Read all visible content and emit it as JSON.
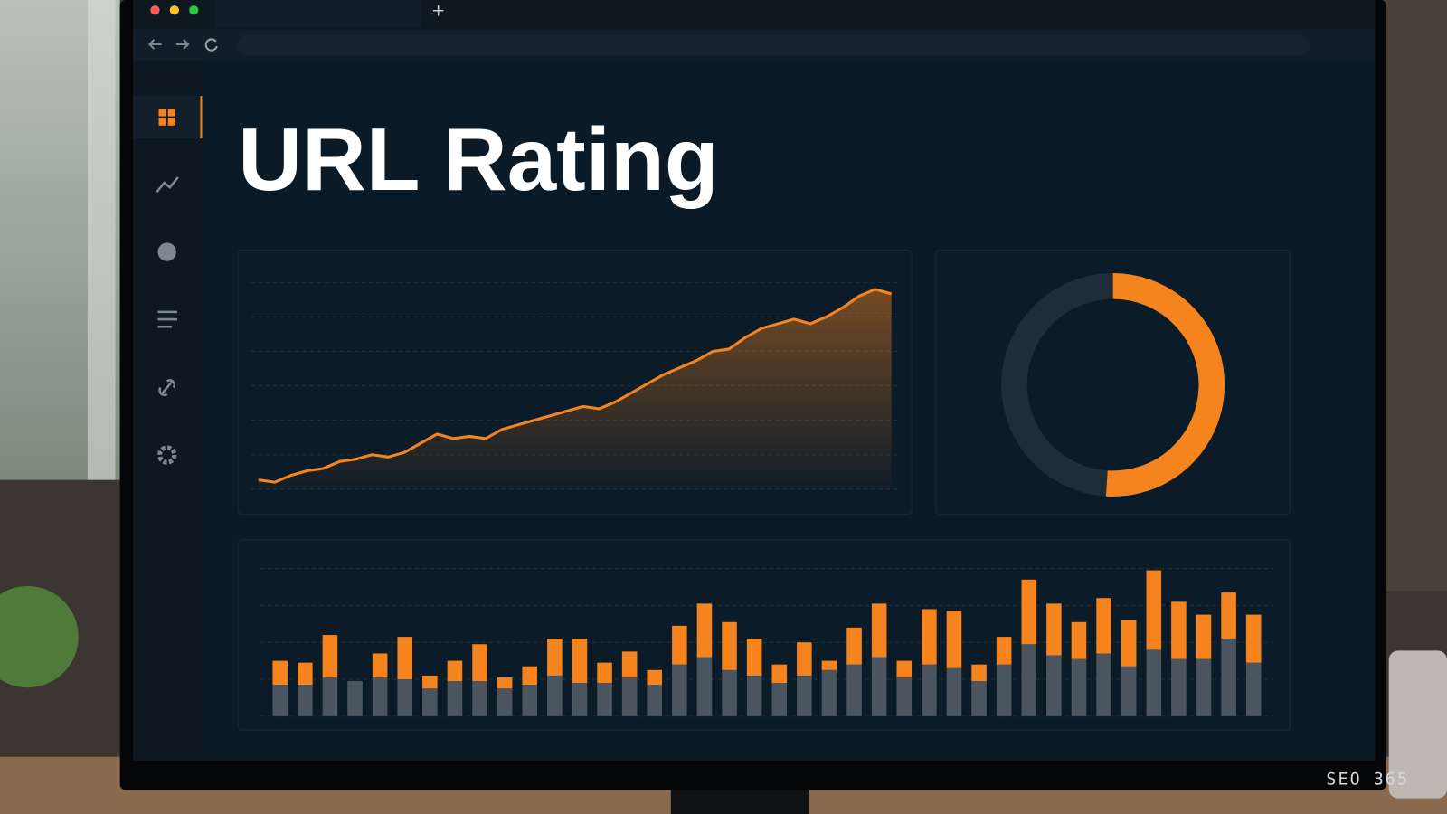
{
  "browser": {
    "new_tab": "+"
  },
  "header": {
    "title": "URL Rating"
  },
  "watermark": "SEO 365",
  "chart_data": [
    {
      "type": "line",
      "color": "#f5841f",
      "values": [
        4,
        3,
        6,
        8,
        9,
        12,
        13,
        15,
        14,
        16,
        20,
        24,
        22,
        23,
        22,
        26,
        28,
        30,
        32,
        34,
        36,
        35,
        38,
        42,
        46,
        50,
        53,
        56,
        60,
        61,
        66,
        70,
        72,
        74,
        72,
        75,
        79,
        84,
        87,
        85
      ],
      "ylim": [
        0,
        90
      ],
      "yticks": [
        0,
        15,
        30,
        45,
        60,
        75,
        90
      ],
      "grid": true
    },
    {
      "type": "pie",
      "donut": true,
      "values": [
        51,
        49
      ],
      "colors": [
        "#f5841f",
        "#1f2d38"
      ]
    },
    {
      "type": "bar",
      "stacked": true,
      "ylim": [
        0,
        170
      ],
      "yticks": [
        0,
        40,
        80,
        120,
        160
      ],
      "grid": true,
      "series": [
        {
          "color": "#4a5560",
          "values": [
            34,
            34,
            42,
            38,
            42,
            40,
            30,
            38,
            38,
            30,
            34,
            44,
            36,
            36,
            42,
            34,
            56,
            64,
            50,
            44,
            36,
            44,
            50,
            56,
            64,
            42,
            56,
            52,
            38,
            56,
            78,
            66,
            62,
            68,
            54,
            72,
            62,
            62,
            84,
            58
          ]
        },
        {
          "color": "#f5841f",
          "values": [
            26,
            24,
            46,
            0,
            26,
            46,
            14,
            22,
            40,
            12,
            20,
            40,
            48,
            22,
            28,
            16,
            42,
            58,
            52,
            40,
            20,
            36,
            10,
            40,
            58,
            18,
            60,
            62,
            18,
            30,
            70,
            56,
            40,
            60,
            50,
            86,
            62,
            48,
            50,
            52
          ]
        }
      ]
    }
  ]
}
